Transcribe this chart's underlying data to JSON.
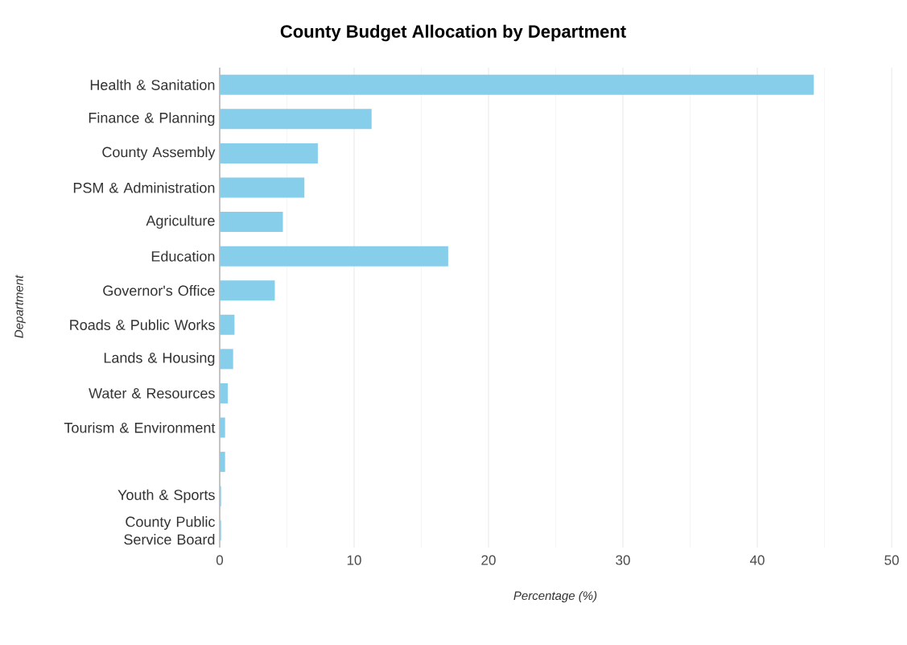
{
  "chart_data": {
    "type": "bar",
    "orientation": "horizontal",
    "title": "County Budget Allocation by Department",
    "xlabel": "Percentage (%)",
    "ylabel": "Department",
    "categories": [
      "Health & Sanitation",
      "Finance & Planning",
      "County Assembly",
      "PSM & Administration",
      "Agriculture",
      "Education",
      "Governor's Office",
      "Roads & Public Works",
      "Lands & Housing",
      "Water & Resources",
      "Tourism & Environment",
      null,
      "Youth & Sports",
      "County Public Service Board"
    ],
    "values": [
      44.2,
      11.3,
      7.3,
      6.3,
      4.7,
      17.0,
      4.1,
      1.1,
      1.0,
      0.6,
      0.4,
      0.4,
      0.1,
      0.1
    ],
    "color": "#87ceeb",
    "xlim": [
      0,
      50
    ],
    "xticks": [
      0,
      10,
      20,
      30,
      40,
      50
    ],
    "grid": "x"
  }
}
